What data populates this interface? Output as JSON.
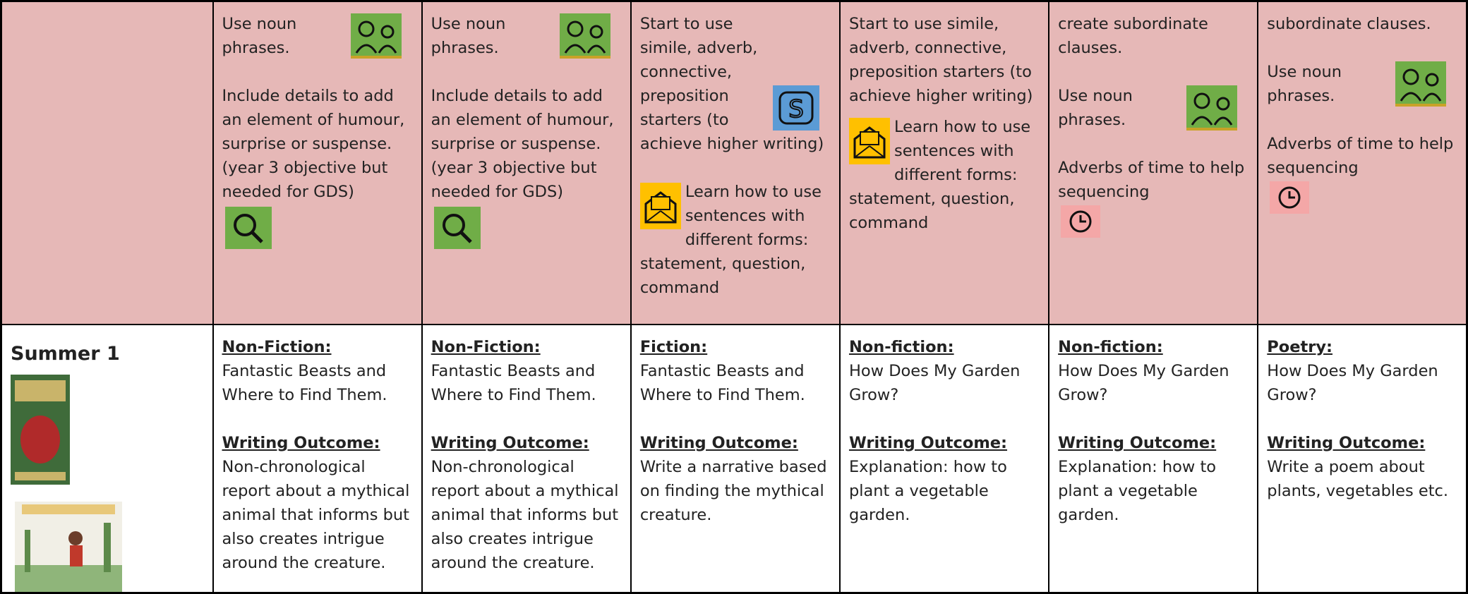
{
  "table": {
    "rows": [
      {
        "cells": [
          [
            "Use noun phrases.",
            "Include details to add an element of humour, surprise or suspense. (year 3 objective but needed for GDS)"
          ],
          [
            "Use noun phrases.",
            "Include details to add an element of humour, surprise or suspense. (year 3 objective but needed for GDS)"
          ],
          [
            "Start to use simile, adverb, connective, preposition starters (to achieve higher writing)",
            "Learn how to use sentences with different forms: statement, question, command"
          ],
          [
            "Start to use simile, adverb, connective, preposition starters (to achieve higher writing)",
            "Learn how to use sentences with different forms: statement, question, command"
          ],
          [
            "create subordinate clauses.",
            "Use noun phrases.",
            "Adverbs of time to help sequencing"
          ],
          [
            "subordinate clauses.",
            "Use noun phrases.",
            "Adverbs of time to help sequencing"
          ]
        ]
      },
      {
        "label": "Summer 1",
        "cells": [
          {
            "genre": "Non-Fiction:",
            "text": "Fantastic Beasts and Where to Find Them.",
            "outcome_label": "Writing Outcome:",
            "outcome": "Non-chronological report about a mythical animal that informs but also creates intrigue around the creature."
          },
          {
            "genre": "Non-Fiction:",
            "text": "Fantastic Beasts and Where to Find Them.",
            "outcome_label": "Writing Outcome:",
            "outcome": "Non-chronological report about a mythical animal that informs but also creates intrigue around the creature."
          },
          {
            "genre": "Fiction:",
            "text": "Fantastic Beasts and Where to Find Them.",
            "outcome_label": "Writing Outcome:",
            "outcome": "Write a narrative based on finding the mythical creature."
          },
          {
            "genre": "Non-fiction:",
            "text": "How Does My Garden Grow?",
            "outcome_label": "Writing Outcome:",
            "outcome": "Explanation: how to plant a vegetable garden."
          },
          {
            "genre": "Non-fiction:",
            "text": "How Does My Garden Grow?",
            "outcome_label": "Writing Outcome:",
            "outcome": "Explanation: how to plant a vegetable garden."
          },
          {
            "genre": "Poetry:",
            "text": "How Does My Garden Grow?",
            "outcome_label": "Writing Outcome:",
            "outcome": "Write a poem about plants, vegetables etc."
          }
        ]
      }
    ]
  }
}
